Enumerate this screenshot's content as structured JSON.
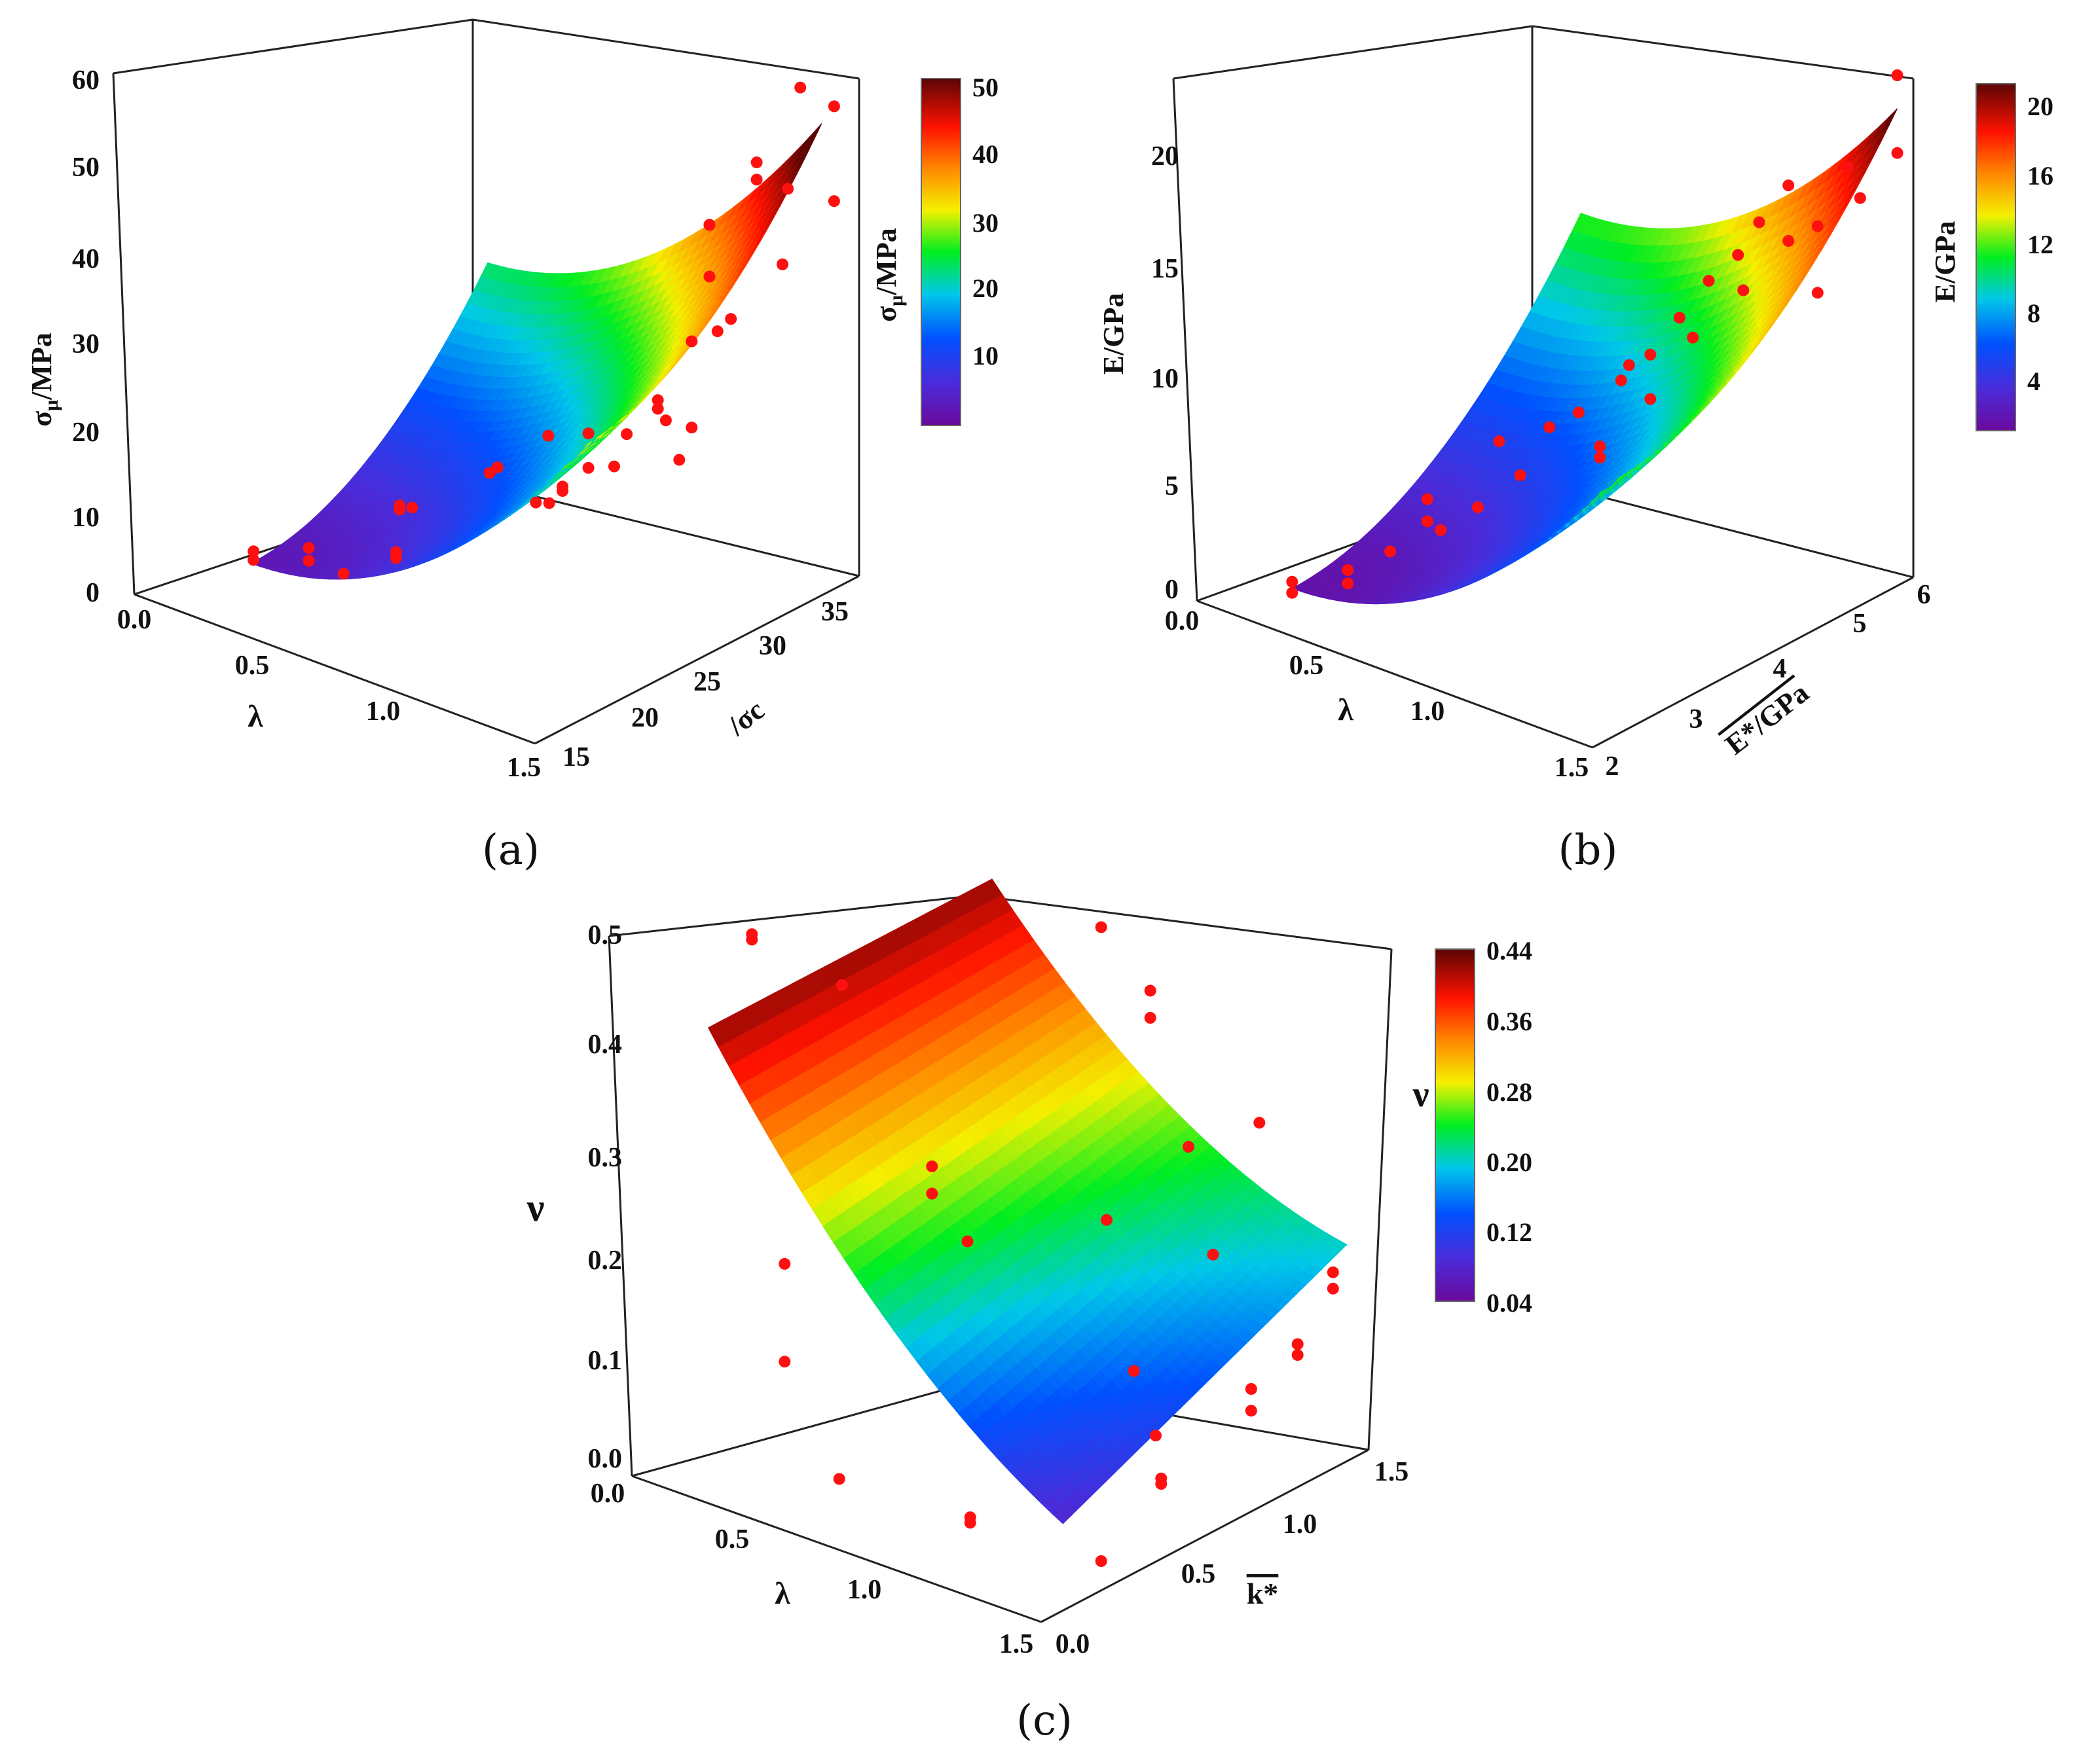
{
  "chart_data": [
    {
      "id": "a",
      "type": "surface3d",
      "caption": "(a)",
      "z_label": "σμ/MPa",
      "x_label": "λ",
      "y_label": "σc",
      "x_ticks": [
        "0.0",
        "0.5",
        "1.0",
        "1.5"
      ],
      "y_ticks": [
        "15",
        "20",
        "25",
        "30",
        "35"
      ],
      "z_ticks": [
        "0",
        "10",
        "20",
        "30",
        "40",
        "50",
        "60"
      ],
      "xlim": [
        0,
        1.5
      ],
      "ylim": [
        12,
        38
      ],
      "zlim": [
        0,
        60
      ],
      "colorbar": {
        "label": "σμ/MPa",
        "ticks": [
          "10",
          "20",
          "30",
          "40",
          "50"
        ],
        "range": [
          1,
          51
        ]
      },
      "surface": {
        "u_range": [
          0.25,
          1.5
        ],
        "v_range": [
          16,
          35
        ],
        "z_corner_low": 3.5,
        "z_corner_high": 54.5
      },
      "points": [
        [
          0.26,
          16,
          5
        ],
        [
          0.26,
          16,
          4
        ],
        [
          0.42,
          17,
          6.5
        ],
        [
          0.42,
          17,
          5
        ],
        [
          0.55,
          17,
          5
        ],
        [
          0.62,
          20,
          11
        ],
        [
          0.62,
          20,
          11.5
        ],
        [
          0.62,
          21,
          10.5
        ],
        [
          0.7,
          18,
          8.5
        ],
        [
          0.7,
          18,
          7.8
        ],
        [
          0.77,
          24,
          14
        ],
        [
          0.8,
          24,
          15
        ],
        [
          0.85,
          26,
          10
        ],
        [
          0.85,
          27,
          17
        ],
        [
          0.9,
          26,
          10.5
        ],
        [
          0.95,
          26,
          13
        ],
        [
          0.95,
          26,
          12.5
        ],
        [
          1.0,
          27,
          19
        ],
        [
          1.0,
          27,
          15
        ],
        [
          1.05,
          28,
          15
        ],
        [
          1.05,
          29,
          18
        ],
        [
          1.12,
          30,
          21
        ],
        [
          1.12,
          30,
          22
        ],
        [
          1.15,
          30,
          20
        ],
        [
          1.2,
          30,
          16
        ],
        [
          1.2,
          31,
          19
        ],
        [
          1.2,
          31,
          29
        ],
        [
          1.22,
          32,
          42
        ],
        [
          1.22,
          32,
          42
        ],
        [
          1.22,
          32,
          36
        ],
        [
          1.25,
          32,
          30
        ],
        [
          1.3,
          32,
          32
        ],
        [
          1.35,
          33,
          50
        ],
        [
          1.35,
          33,
          48
        ],
        [
          1.4,
          34,
          38
        ],
        [
          1.42,
          34,
          47
        ],
        [
          1.42,
          35,
          58
        ],
        [
          1.5,
          36,
          56
        ],
        [
          1.5,
          36,
          45
        ]
      ]
    },
    {
      "id": "b",
      "type": "surface3d",
      "caption": "(b)",
      "z_label": "E/GPa",
      "x_label": "λ",
      "y_label": "E*/GPa",
      "x_ticks": [
        "0.0",
        "0.5",
        "1.0",
        "1.5"
      ],
      "y_ticks": [
        "2",
        "3",
        "4",
        "5",
        "6"
      ],
      "z_ticks": [
        "0",
        "5",
        "10",
        "15",
        "20"
      ],
      "xlim": [
        0,
        1.5
      ],
      "ylim": [
        2,
        6
      ],
      "zlim": [
        0,
        23
      ],
      "colorbar": {
        "label": "E/GPa",
        "ticks": [
          "4",
          "8",
          "12",
          "16",
          "20"
        ],
        "range": [
          1,
          21
        ]
      },
      "surface": {
        "u_range": [
          0.3,
          1.5
        ],
        "v_range": [
          2.2,
          5.8
        ],
        "z_corner_low": 1.5,
        "z_corner_high": 21.5
      },
      "points": [
        [
          0.3,
          2.2,
          1.3
        ],
        [
          0.3,
          2.2,
          1.8
        ],
        [
          0.45,
          2.4,
          2.6
        ],
        [
          0.45,
          2.4,
          2.0
        ],
        [
          0.55,
          2.6,
          3.5
        ],
        [
          0.6,
          2.9,
          5.5
        ],
        [
          0.6,
          2.9,
          4.5
        ],
        [
          0.62,
          3.0,
          4.0
        ],
        [
          0.7,
          3.2,
          5.0
        ],
        [
          0.75,
          3.3,
          8.0
        ],
        [
          0.8,
          3.4,
          6.5
        ],
        [
          0.85,
          3.6,
          8.5
        ],
        [
          0.9,
          3.8,
          9.0
        ],
        [
          0.95,
          3.9,
          7.0
        ],
        [
          0.95,
          3.9,
          7.5
        ],
        [
          1.0,
          4.0,
          10.5
        ],
        [
          1.0,
          4.1,
          11.0
        ],
        [
          1.05,
          4.2,
          9.5
        ],
        [
          1.05,
          4.2,
          11.5
        ],
        [
          1.1,
          4.4,
          13.0
        ],
        [
          1.12,
          4.5,
          12.0
        ],
        [
          1.15,
          4.6,
          14.5
        ],
        [
          1.2,
          4.8,
          15.5
        ],
        [
          1.22,
          4.8,
          14.0
        ],
        [
          1.25,
          4.9,
          17.0
        ],
        [
          1.3,
          5.1,
          16.0
        ],
        [
          1.3,
          5.1,
          18.5
        ],
        [
          1.35,
          5.3,
          16.5
        ],
        [
          1.35,
          5.3,
          13.5
        ],
        [
          1.4,
          5.5,
          19.0
        ],
        [
          1.42,
          5.6,
          17.5
        ],
        [
          1.5,
          5.8,
          23.0
        ],
        [
          1.5,
          5.8,
          19.5
        ]
      ]
    },
    {
      "id": "c",
      "type": "surface3d",
      "caption": "(c)",
      "z_label": "ν",
      "x_label": "λ",
      "y_label": "k*",
      "x_ticks": [
        "0.0",
        "0.5",
        "1.0",
        "1.5"
      ],
      "y_ticks": [
        "0.0",
        "0.5",
        "1.0",
        "1.5"
      ],
      "z_ticks": [
        "0.0",
        "0.1",
        "0.2",
        "0.3",
        "0.4",
        "0.5"
      ],
      "xlim": [
        0,
        1.5
      ],
      "ylim": [
        0,
        1.5
      ],
      "zlim": [
        0,
        0.5
      ],
      "colorbar": {
        "label": "ν",
        "ticks": [
          "0.04",
          "0.12",
          "0.20",
          "0.28",
          "0.36",
          "0.44"
        ],
        "range": [
          0.04,
          0.44
        ]
      },
      "surface": {
        "u_range": [
          0.2,
          1.5
        ],
        "v_range": [
          0.1,
          1.4
        ]
      },
      "points": [
        [
          0.2,
          0.3,
          0.485
        ],
        [
          0.2,
          0.3,
          0.48
        ],
        [
          0.45,
          0.4,
          0.45
        ],
        [
          0.7,
          0.5,
          0.295
        ],
        [
          0.7,
          0.5,
          0.27
        ],
        [
          0.4,
          0.2,
          0.21
        ],
        [
          0.4,
          0.2,
          0.12
        ],
        [
          0.75,
          0.6,
          0.22
        ],
        [
          0.6,
          0.2,
          0.03
        ],
        [
          1.0,
          0.9,
          0.5
        ],
        [
          1.1,
          1.0,
          0.44
        ],
        [
          1.1,
          1.0,
          0.415
        ],
        [
          1.2,
          1.05,
          0.3
        ],
        [
          1.3,
          1.25,
          0.31
        ],
        [
          1.1,
          0.8,
          0.25
        ],
        [
          1.25,
          1.1,
          0.2
        ],
        [
          1.2,
          0.8,
          0.12
        ],
        [
          1.4,
          1.3,
          0.11
        ],
        [
          1.4,
          1.3,
          0.1
        ],
        [
          1.45,
          1.4,
          0.17
        ],
        [
          1.45,
          1.4,
          0.155
        ],
        [
          1.35,
          1.15,
          0.08
        ],
        [
          1.35,
          1.15,
          0.06
        ],
        [
          1.2,
          0.9,
          0.05
        ],
        [
          1.3,
          0.8,
          0.03
        ],
        [
          1.3,
          0.8,
          0.025
        ],
        [
          1.0,
          0.3,
          0.02
        ],
        [
          1.0,
          0.3,
          0.015
        ],
        [
          1.4,
          0.4,
          0.005
        ]
      ]
    }
  ]
}
